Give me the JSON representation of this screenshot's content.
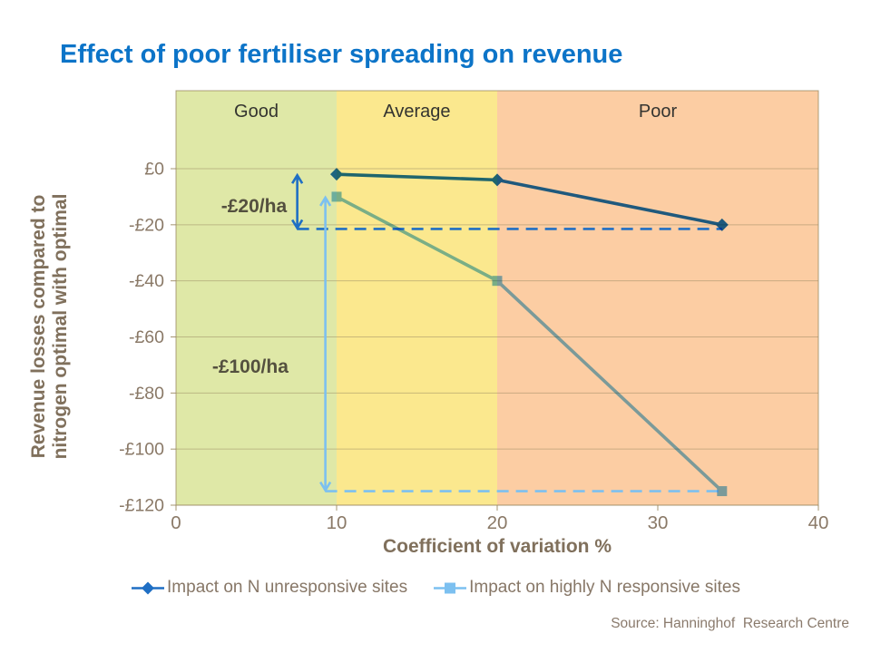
{
  "source": "Source: Hanninghof  Research Centre",
  "colors": {
    "title": "#0C74C8",
    "axis_text": "#8A7967",
    "axis_title": "#80705C",
    "zone_label": "#343430",
    "annotation_text": "#54503F",
    "legend_text": "#877767",
    "grid": "#9A8862",
    "series1": "#1F6FC4",
    "series2": "#7CC0F0",
    "zone_good": "#DFE8A7",
    "zone_average": "#FBE88E",
    "zone_poor": "#FCCDA3"
  },
  "chart_data": {
    "type": "line",
    "title": "Effect of poor fertiliser spreading on revenue",
    "xlabel": "Coefficient of variation %",
    "ylabel": "Revenue losses compared to nitrogen optimal with optimal",
    "ylabel_lines": [
      "Revenue losses compared to",
      "nitrogen optimal with optimal"
    ],
    "xlim": [
      0,
      40
    ],
    "ylim": [
      -120,
      28
    ],
    "grid": true,
    "legend_position": "bottom",
    "xticks": [
      0,
      10,
      20,
      30,
      40
    ],
    "yticks": [
      {
        "value": 0,
        "label": "£0"
      },
      {
        "value": -20,
        "label": "-£20"
      },
      {
        "value": -40,
        "label": "-£40"
      },
      {
        "value": -60,
        "label": "-£60"
      },
      {
        "value": -80,
        "label": "-£80"
      },
      {
        "value": -100,
        "label": "-£100"
      },
      {
        "value": -120,
        "label": "-£120"
      }
    ],
    "zones": [
      {
        "label": "Good",
        "from": 0,
        "to": 10,
        "color": "#DFE8A7"
      },
      {
        "label": "Average",
        "from": 10,
        "to": 20,
        "color": "#FBE88E"
      },
      {
        "label": "Poor",
        "from": 20,
        "to": 40,
        "color": "#FCCDA3"
      }
    ],
    "series": [
      {
        "name": "Impact on N unresponsive sites",
        "color": "#1F6FC4",
        "marker": "diamond",
        "x": [
          10,
          20,
          34
        ],
        "y": [
          -2,
          -4,
          -20
        ]
      },
      {
        "name": "Impact on highly N responsive sites",
        "color": "#7CC0F0",
        "marker": "square",
        "x": [
          10,
          20,
          34
        ],
        "y": [
          -10,
          -40,
          -115
        ]
      }
    ],
    "annotations": [
      {
        "text": "-£20/ha",
        "color": "#1F6FC4",
        "arrow_x": 7.55,
        "arrow_from": -2,
        "dash_y": -21.5,
        "dash_to": 34,
        "label_x": 6.9,
        "label_y": -13.3
      },
      {
        "text": "-£100/ha",
        "color": "#7CC0F0",
        "arrow_x": 9.3,
        "arrow_from": -10,
        "dash_y": -115,
        "dash_to": 34,
        "label_x": 7.0,
        "label_y": -70.5
      }
    ]
  }
}
